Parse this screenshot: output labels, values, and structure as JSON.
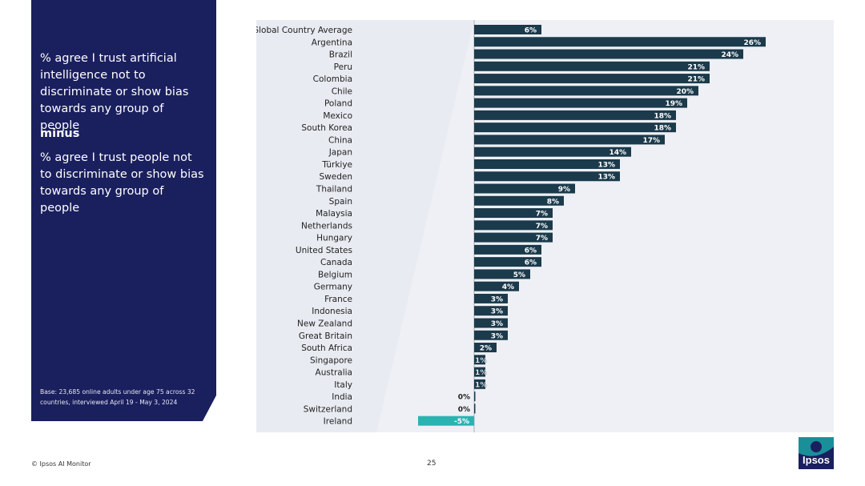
{
  "left_panel": {
    "line1": "% agree I trust artificial intelligence not to discriminate or show bias towards any group of people",
    "minus": "minus",
    "line2": "% agree I trust people not to discriminate or show bias towards any group of people",
    "base_note": "Base: 23,685 online adults under age 75 across 32 countries, interviewed April 19 - May 3, 2024"
  },
  "footer": {
    "copyright": "© Ipsos AI Monitor",
    "page_number": "25"
  },
  "logo": {
    "text": "Ipsos"
  },
  "colors": {
    "panel": "#1a1f5e",
    "bar_positive": "#1b3a4b",
    "bar_negative": "#2ab3b1",
    "chart_bg": "#e9ebf2"
  },
  "chart_data": {
    "type": "bar",
    "orientation": "horizontal",
    "categories": [
      "Global Country Average",
      "Argentina",
      "Brazil",
      "Peru",
      "Colombia",
      "Chile",
      "Poland",
      "Mexico",
      "South Korea",
      "China",
      "Japan",
      "Türkiye",
      "Sweden",
      "Thailand",
      "Spain",
      "Malaysia",
      "Netherlands",
      "Hungary",
      "United States",
      "Canada",
      "Belgium",
      "Germany",
      "France",
      "Indonesia",
      "New Zealand",
      "Great Britain",
      "South Africa",
      "Singapore",
      "Australia",
      "Italy",
      "India",
      "Switzerland",
      "Ireland"
    ],
    "values": [
      6,
      26,
      24,
      21,
      21,
      20,
      19,
      18,
      18,
      17,
      14,
      13,
      13,
      9,
      8,
      7,
      7,
      7,
      6,
      6,
      5,
      4,
      3,
      3,
      3,
      3,
      2,
      1,
      1,
      1,
      0,
      0,
      -5
    ],
    "labels": [
      "6%",
      "26%",
      "24%",
      "21%",
      "21%",
      "20%",
      "19%",
      "18%",
      "18%",
      "17%",
      "14%",
      "13%",
      "13%",
      "9%",
      "8%",
      "7%",
      "7%",
      "7%",
      "6%",
      "6%",
      "5%",
      "4%",
      "3%",
      "3%",
      "3%",
      "3%",
      "2%",
      "1%",
      "1%",
      "1%",
      "0%",
      "0%",
      "-5%"
    ],
    "title": "",
    "xlabel": "",
    "ylabel": "",
    "grid": false,
    "legend": "none"
  }
}
